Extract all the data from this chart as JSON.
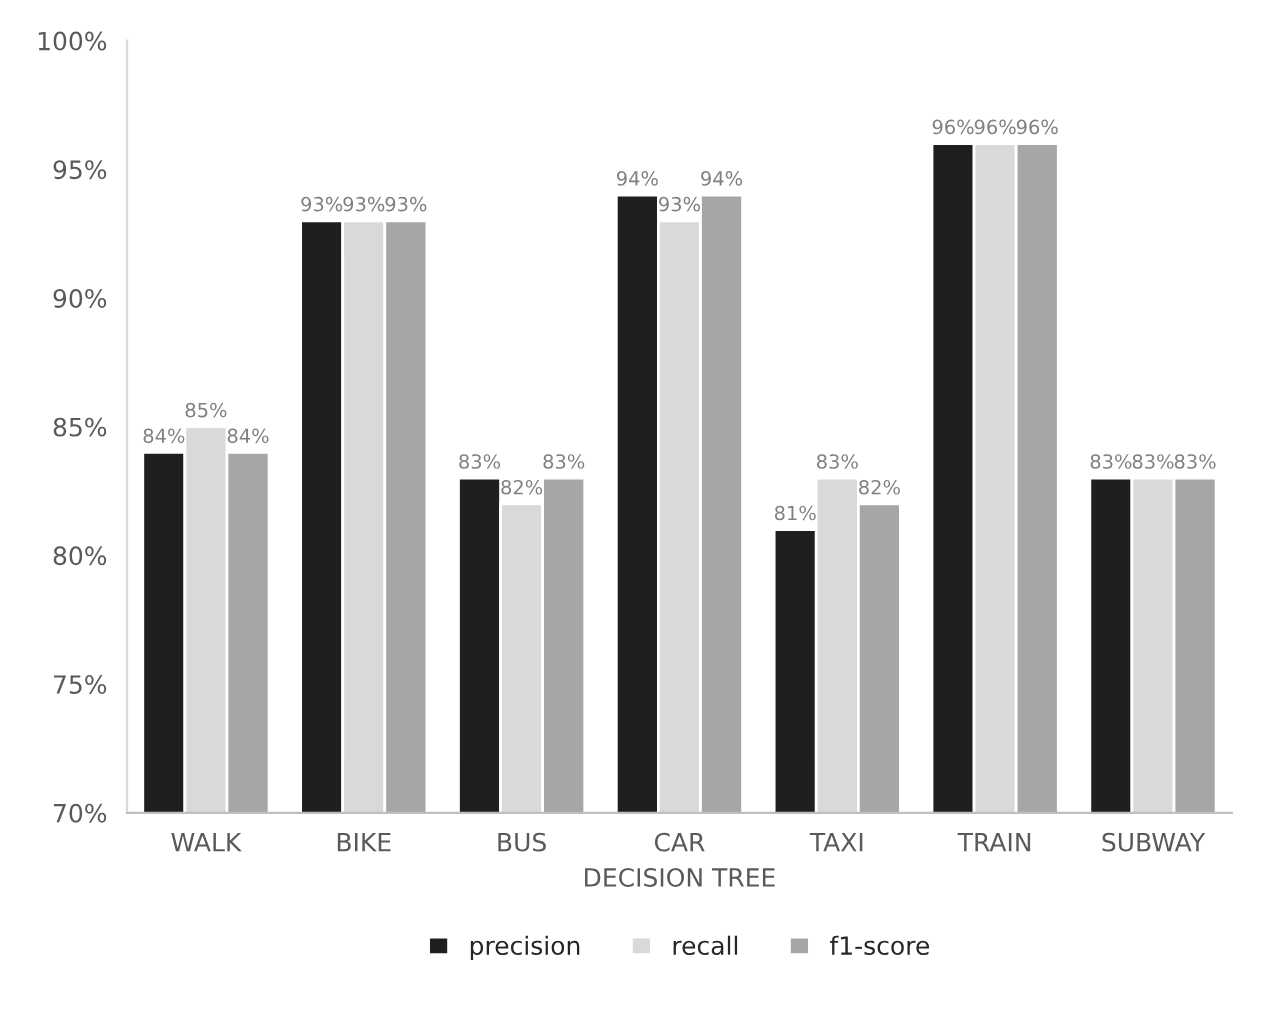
{
  "chart_data": {
    "type": "bar",
    "xlabel": "DECISION TREE",
    "categories": [
      "WALK",
      "BIKE",
      "BUS",
      "CAR",
      "TAXI",
      "TRAIN",
      "SUBWAY"
    ],
    "series": [
      {
        "name": "precision",
        "color": "#1f1f1f",
        "values": [
          84,
          93,
          83,
          94,
          81,
          96,
          83
        ],
        "value_labels": [
          "84%",
          "93%",
          "83%",
          "94%",
          "81%",
          "96%",
          "83%"
        ]
      },
      {
        "name": "recall",
        "color": "#d9d9d9",
        "values": [
          85,
          93,
          82,
          93,
          83,
          96,
          83
        ],
        "value_labels": [
          "85%",
          "93%",
          "82%",
          "93%",
          "83%",
          "96%",
          "83%"
        ]
      },
      {
        "name": "f1-score",
        "color": "#a6a6a6",
        "values": [
          84,
          93,
          83,
          94,
          82,
          96,
          83
        ],
        "value_labels": [
          "84%",
          "93%",
          "83%",
          "94%",
          "82%",
          "96%",
          "83%"
        ]
      }
    ],
    "ylim": [
      70,
      100
    ],
    "yticks": [
      {
        "value": 70,
        "label": "70%"
      },
      {
        "value": 75,
        "label": "75%"
      },
      {
        "value": 80,
        "label": "80%"
      },
      {
        "value": 85,
        "label": "85%"
      },
      {
        "value": 90,
        "label": "90%"
      },
      {
        "value": 95,
        "label": "95%"
      },
      {
        "value": 100,
        "label": "100%"
      }
    ],
    "grid": false,
    "legend": "bottom"
  }
}
